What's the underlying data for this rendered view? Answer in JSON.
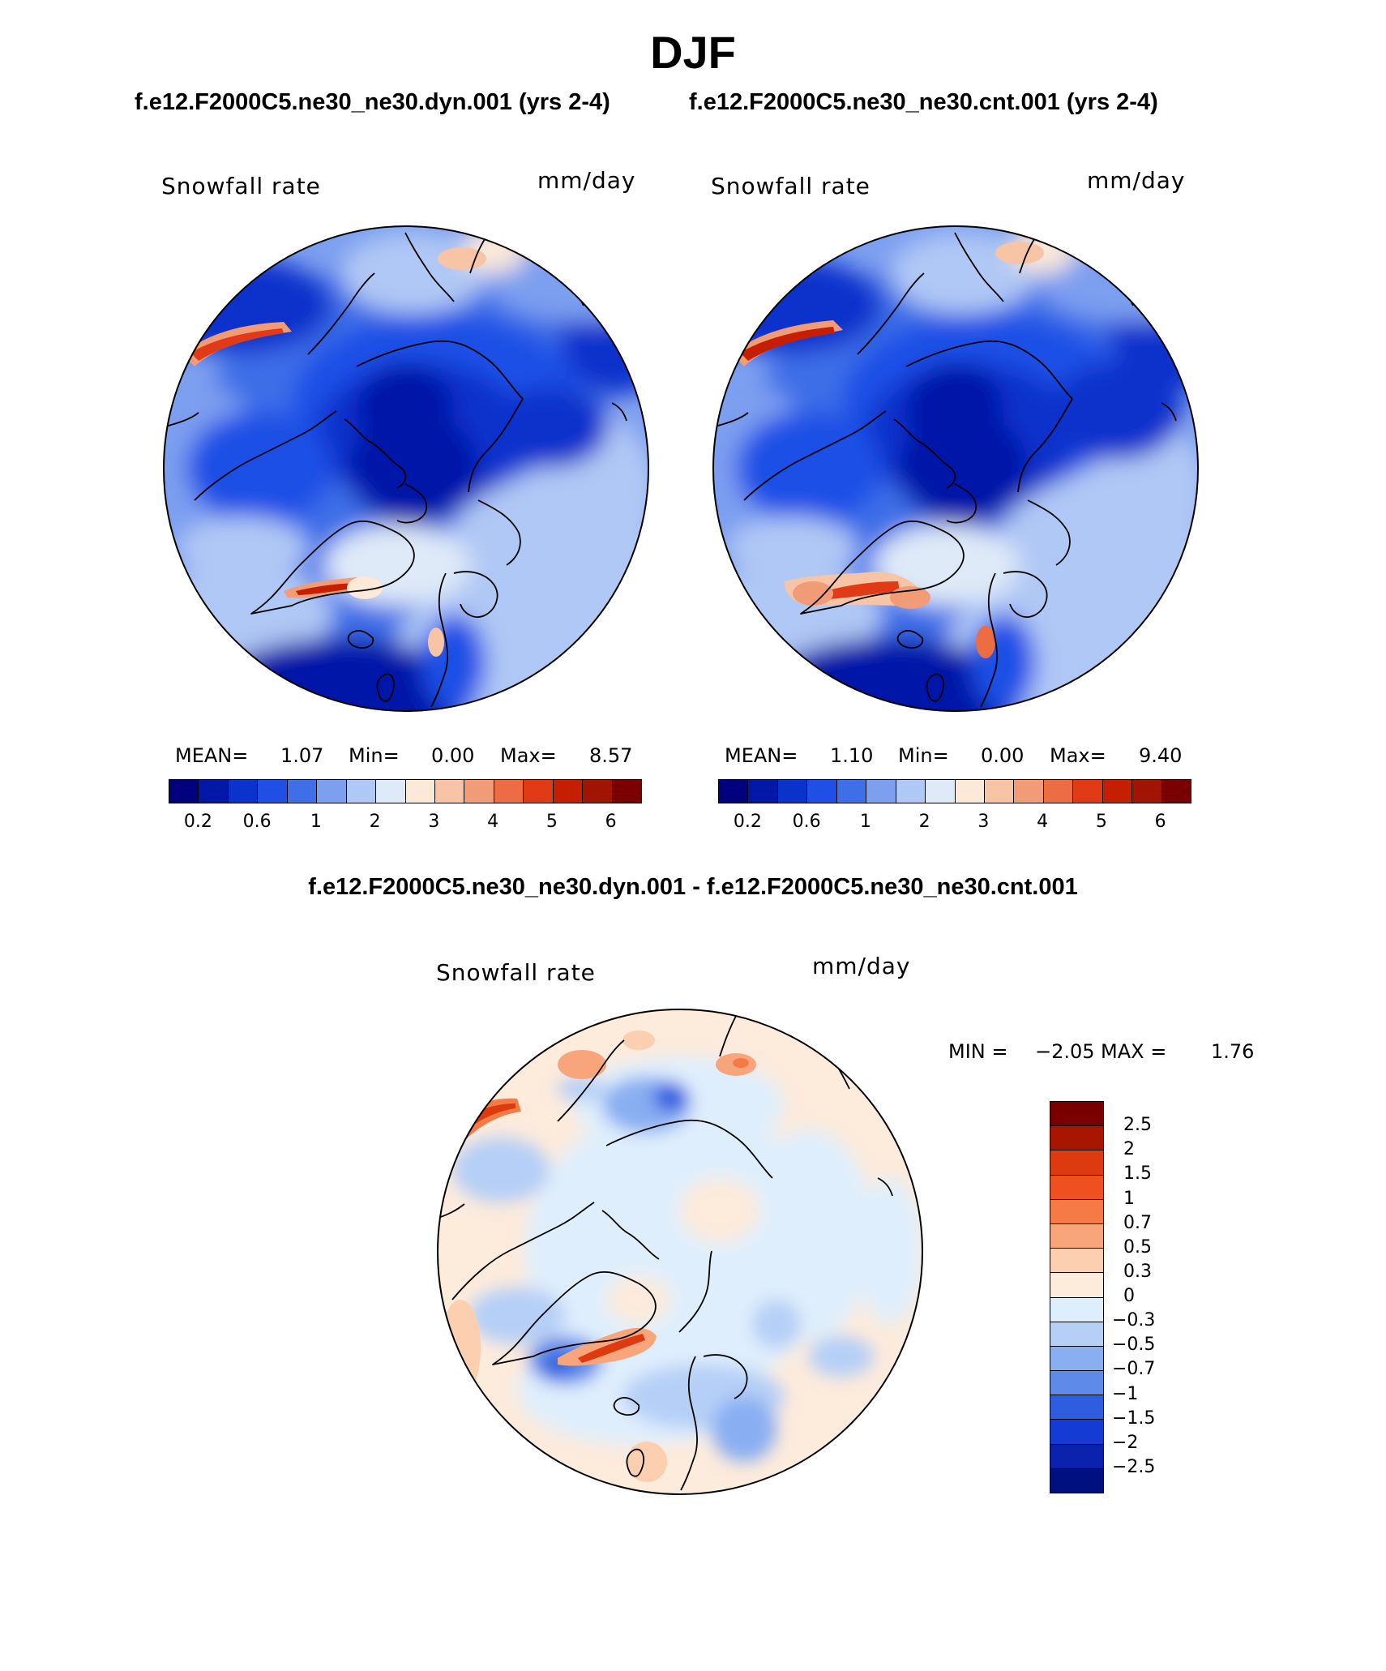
{
  "title": "DJF",
  "panels": [
    {
      "case": "f.e12.F2000C5.ne30_ne30.dyn.001 (yrs 2-4)",
      "variable": "Snowfall rate",
      "units": "mm/day",
      "mean_label": "MEAN=",
      "mean": "1.07",
      "min_label": "Min=",
      "min": "0.00",
      "max_label": "Max=",
      "max": "8.57"
    },
    {
      "case": "f.e12.F2000C5.ne30_ne30.cnt.001 (yrs 2-4)",
      "variable": "Snowfall rate",
      "units": "mm/day",
      "mean_label": "MEAN=",
      "mean": "1.10",
      "min_label": "Min=",
      "min": "0.00",
      "max_label": "Max=",
      "max": "9.40"
    }
  ],
  "colorbar": {
    "colors": [
      "#00007f",
      "#0018a8",
      "#0a33cc",
      "#1f4fe6",
      "#3e6ee8",
      "#7d9ff0",
      "#b0c8f5",
      "#dfeaf8",
      "#fde9d8",
      "#f8c4a6",
      "#f29b77",
      "#ec6c44",
      "#e03a16",
      "#c61f00",
      "#a01400",
      "#7a0000"
    ],
    "ticks": [
      "0.2",
      "0.6",
      "1",
      "2",
      "3",
      "4",
      "5",
      "6"
    ]
  },
  "difference": {
    "title": "f.e12.F2000C5.ne30_ne30.dyn.001 - f.e12.F2000C5.ne30_ne30.cnt.001",
    "variable": "Snowfall rate",
    "units": "mm/day",
    "min_label": "MIN =",
    "min": "−2.05",
    "max_label": "MAX =",
    "max": "1.76",
    "colors": [
      "#7a0000",
      "#a81500",
      "#dd3a0f",
      "#f04f20",
      "#f67a45",
      "#f8a57c",
      "#fbcfb0",
      "#fdebdc",
      "#dfeefc",
      "#b5cff7",
      "#89aef2",
      "#5e8ae9",
      "#2f5de0",
      "#143cd4",
      "#0a22ad",
      "#00107f"
    ],
    "ticks": [
      "2.5",
      "2",
      "1.5",
      "1",
      "0.7",
      "0.5",
      "0.3",
      "0",
      "−0.3",
      "−0.5",
      "−0.7",
      "−1",
      "−1.5",
      "−2",
      "−2.5"
    ]
  }
}
